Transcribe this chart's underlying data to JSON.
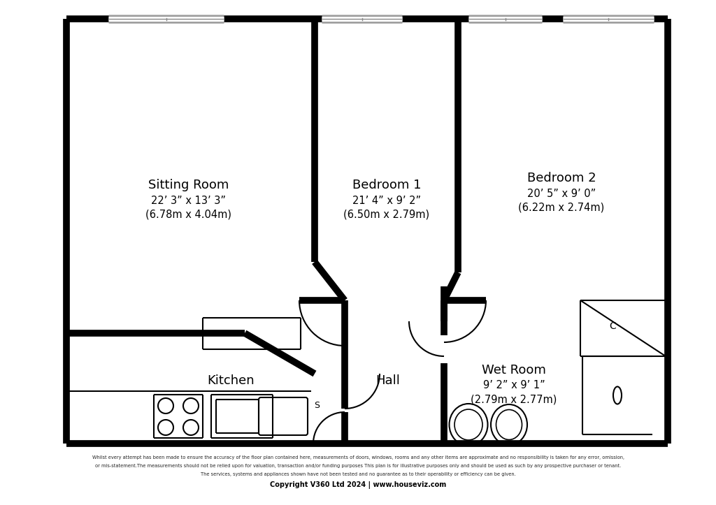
{
  "bg_color": "#ffffff",
  "wall_color": "#000000",
  "rooms": {
    "sitting_room": {
      "label": "Sitting Room",
      "sub1": "22’ 3” x 13’ 3”",
      "sub2": "(6.78m x 4.04m)"
    },
    "bedroom1": {
      "label": "Bedroom 1",
      "sub1": "21’ 4” x 9’ 2”",
      "sub2": "(6.50m x 2.79m)"
    },
    "bedroom2": {
      "label": "Bedroom 2",
      "sub1": "20’ 5” x 9’ 0”",
      "sub2": "(6.22m x 2.74m)"
    },
    "kitchen": {
      "label": "Kitchen"
    },
    "hall": {
      "label": "Hall"
    },
    "wet_room": {
      "label": "Wet Room",
      "sub1": "9’ 2” x 9’ 1”",
      "sub2": "(2.79m x 2.77m)"
    }
  },
  "footer_line1": "Whilst every attempt has been made to ensure the accuracy of the floor plan contained here, measurements of doors, windows, rooms and any other items are approximate and no responsibility is taken for any error, omission,",
  "footer_line2": "or mis-statement.The measurements should not be relied upon for valuation, transaction and/or funding purposes This plan is for illustrative purposes only and should be used as such by any prospective purchaser or tenant.",
  "footer_line3": "The services, systems and appliances shown have not been tested and no guarantee as to their operability or efficiency can be given.",
  "footer_copyright": "Copyright V360 Ltd 2024 | www.houseviz.com"
}
